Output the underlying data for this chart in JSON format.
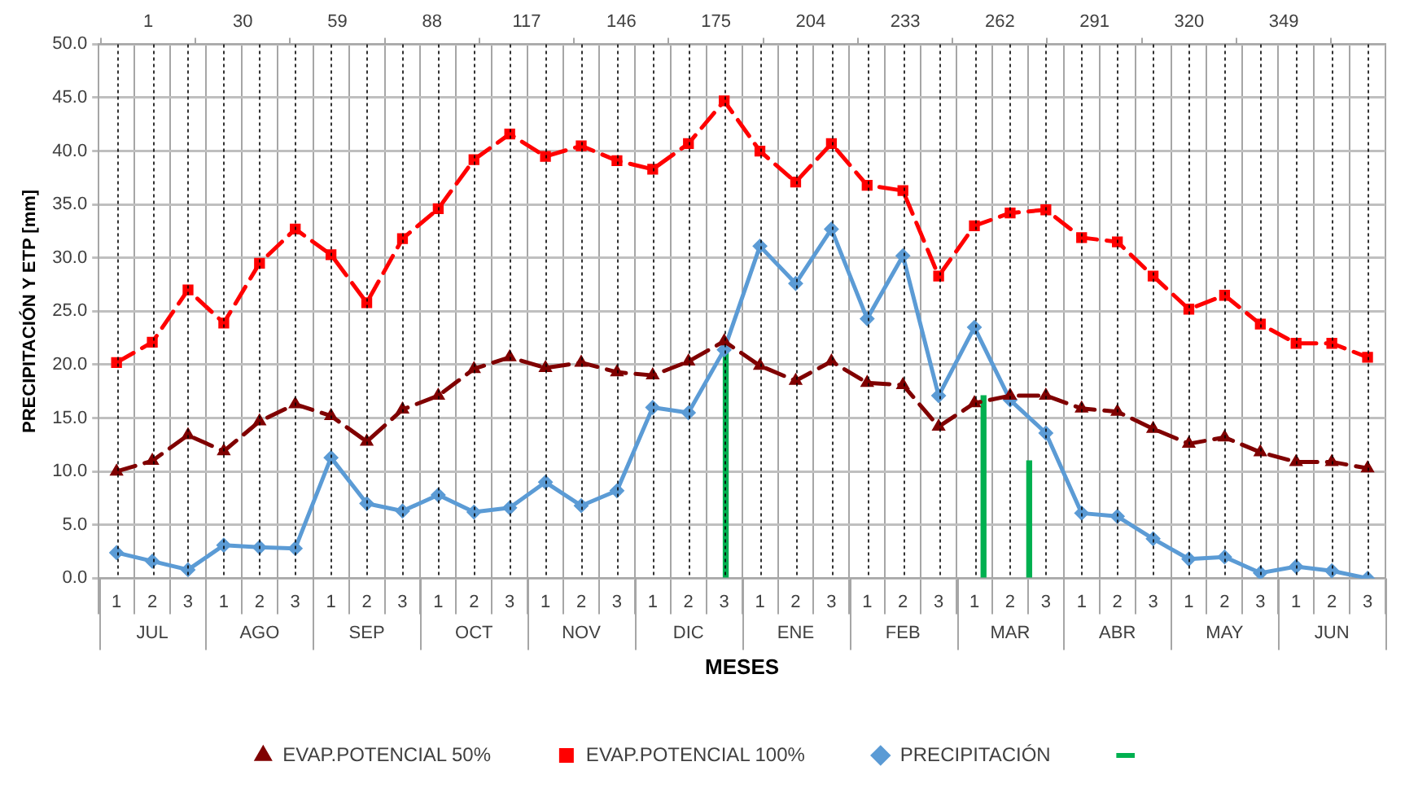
{
  "chart_data": {
    "type": "line",
    "xlabel": "MESES",
    "ylabel": "PRECIPITACIÓN Y ETP [mm]",
    "categories": [
      "1",
      "2",
      "3",
      "1",
      "2",
      "3",
      "1",
      "2",
      "3",
      "1",
      "2",
      "3",
      "1",
      "2",
      "3",
      "1",
      "2",
      "3",
      "1",
      "2",
      "3",
      "1",
      "2",
      "3",
      "1",
      "2",
      "3",
      "1",
      "2",
      "3",
      "1",
      "2",
      "3",
      "1",
      "2",
      "3"
    ],
    "annotations": [
      "JUL",
      "AGO",
      "SEP",
      "OCT",
      "NOV",
      "DIC",
      "ENE",
      "FEB",
      "MAR",
      "ABR",
      "MAY",
      "JUN"
    ],
    "ylim": [
      0,
      50
    ],
    "yticks": [
      {
        "value": 0,
        "label": "0.0"
      },
      {
        "value": 5,
        "label": "5.0"
      },
      {
        "value": 10,
        "label": "10.0"
      },
      {
        "value": 15,
        "label": "15.0"
      },
      {
        "value": 20,
        "label": "20.0"
      },
      {
        "value": 25,
        "label": "25.0"
      },
      {
        "value": 30,
        "label": "30.0"
      },
      {
        "value": 35,
        "label": "35.0"
      },
      {
        "value": 40,
        "label": "40.0"
      },
      {
        "value": 45,
        "label": "45.0"
      },
      {
        "value": 50,
        "label": "50.0"
      }
    ],
    "x2lim": [
      1,
      365
    ],
    "x2ticks": [
      1,
      30,
      59,
      88,
      117,
      146,
      175,
      204,
      233,
      262,
      291,
      320,
      349
    ],
    "grid": true,
    "legend": "bottom",
    "series": [
      {
        "name": "PRECIPITACIÓN",
        "color": "#5b9bd5",
        "marker": "diamond",
        "line_style": "solid",
        "values": [
          2.4,
          1.6,
          0.8,
          3.1,
          2.9,
          2.8,
          11.3,
          7.0,
          6.3,
          7.8,
          6.2,
          6.6,
          9.0,
          6.8,
          8.2,
          16.0,
          15.5,
          21.4,
          31.1,
          27.6,
          32.7,
          24.3,
          30.2,
          17.1,
          23.5,
          16.7,
          13.6,
          6.1,
          5.8,
          3.7,
          1.8,
          2.0,
          0.5,
          1.1,
          0.7,
          0.0
        ]
      },
      {
        "name": "EVAP.POTENCIAL 100%",
        "color": "#ff0000",
        "marker": "square",
        "line_style": "dashed",
        "values": [
          20.2,
          22.1,
          27.0,
          23.9,
          29.5,
          32.7,
          30.3,
          25.8,
          31.8,
          34.6,
          39.2,
          41.6,
          39.5,
          40.5,
          39.1,
          38.3,
          40.7,
          44.7,
          40.0,
          37.1,
          40.7,
          36.8,
          36.3,
          28.3,
          33.0,
          34.2,
          34.5,
          31.9,
          31.5,
          28.3,
          25.2,
          26.5,
          23.8,
          22.0,
          22.0,
          20.7
        ]
      },
      {
        "name": "EVAP.POTENCIAL 50%",
        "color": "#800000",
        "marker": "triangle",
        "line_style": "dashed",
        "values": [
          10.0,
          11.0,
          13.4,
          11.9,
          14.7,
          16.3,
          15.2,
          12.8,
          15.8,
          17.1,
          19.6,
          20.7,
          19.7,
          20.2,
          19.3,
          19.0,
          20.3,
          22.2,
          19.9,
          18.5,
          20.3,
          18.3,
          18.1,
          14.2,
          16.4,
          17.1,
          17.1,
          15.9,
          15.6,
          14.0,
          12.6,
          13.2,
          11.8,
          10.9,
          10.9,
          10.3
        ]
      },
      {
        "type": "bar",
        "color": "#00b050",
        "axis": "x2",
        "x": [
          178,
          257,
          271
        ],
        "values": [
          21.5,
          17.1,
          11.0
        ]
      }
    ]
  }
}
